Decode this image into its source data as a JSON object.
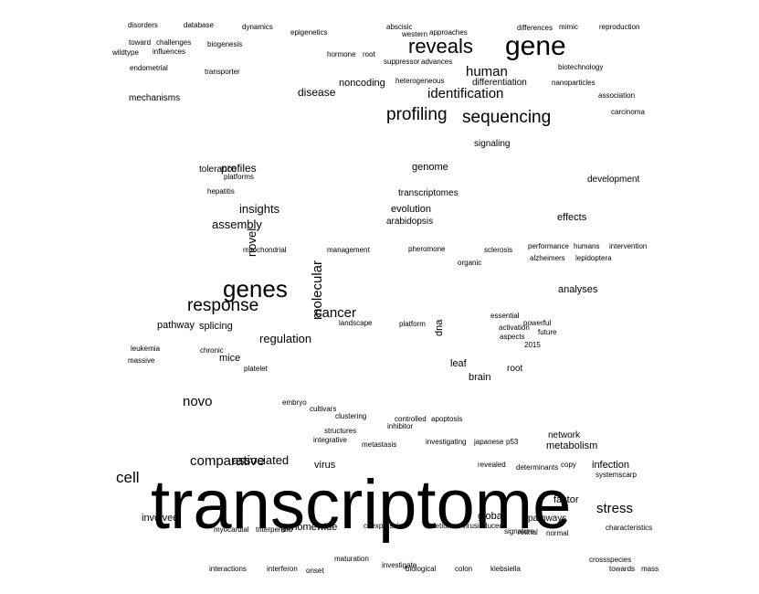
{
  "word_cloud": {
    "color": "#000000",
    "words": [
      {
        "text": "transcriptome",
        "emphasis": "largest"
      },
      {
        "text": "gene",
        "emphasis": "large"
      },
      {
        "text": "genes",
        "emphasis": "large"
      },
      {
        "text": "reveals",
        "emphasis": "large"
      },
      {
        "text": "profiling",
        "emphasis": "large"
      },
      {
        "text": "sequencing",
        "emphasis": "large"
      },
      {
        "text": "response",
        "emphasis": "large"
      },
      {
        "text": "identification",
        "emphasis": "medium"
      },
      {
        "text": "human",
        "emphasis": "medium"
      },
      {
        "text": "cell",
        "emphasis": "medium"
      },
      {
        "text": "comparative",
        "emphasis": "medium"
      },
      {
        "text": "stress",
        "emphasis": "medium"
      },
      {
        "text": "regulation",
        "emphasis": "medium"
      },
      {
        "text": "novo",
        "emphasis": "medium"
      },
      {
        "text": "assembly",
        "emphasis": "medium"
      },
      {
        "text": "cancer",
        "emphasis": "medium"
      },
      {
        "text": "molecular",
        "emphasis": "medium"
      },
      {
        "text": "associated",
        "emphasis": "medium"
      },
      {
        "text": "insights",
        "emphasis": "medium"
      },
      {
        "text": "profiles",
        "emphasis": "medium"
      },
      {
        "text": "novel",
        "emphasis": "medium"
      },
      {
        "text": "disease",
        "emphasis": "medium"
      },
      {
        "text": "signaling",
        "emphasis": "small"
      },
      {
        "text": "mechanisms",
        "emphasis": "small"
      },
      {
        "text": "analyses",
        "emphasis": "small"
      },
      {
        "text": "pathway",
        "emphasis": "small"
      },
      {
        "text": "pathways",
        "emphasis": "small"
      },
      {
        "text": "genome",
        "emphasis": "small"
      },
      {
        "text": "infection",
        "emphasis": "small"
      },
      {
        "text": "involved",
        "emphasis": "small"
      },
      {
        "text": "genomewide",
        "emphasis": "small"
      },
      {
        "text": "virus",
        "emphasis": "small"
      },
      {
        "text": "metabolism",
        "emphasis": "small"
      },
      {
        "text": "factor",
        "emphasis": "small"
      },
      {
        "text": "global",
        "emphasis": "small"
      },
      {
        "text": "evolution",
        "emphasis": "small"
      },
      {
        "text": "noncoding",
        "emphasis": "small"
      },
      {
        "text": "transcriptomes",
        "emphasis": "small"
      },
      {
        "text": "arabidopsis",
        "emphasis": "small"
      },
      {
        "text": "differentiation",
        "emphasis": "small"
      },
      {
        "text": "development",
        "emphasis": "small"
      },
      {
        "text": "effects",
        "emphasis": "small"
      },
      {
        "text": "network",
        "emphasis": "small"
      },
      {
        "text": "tolerance",
        "emphasis": "small"
      },
      {
        "text": "splicing",
        "emphasis": "small"
      },
      {
        "text": "mice",
        "emphasis": "small"
      },
      {
        "text": "dna",
        "emphasis": "small"
      },
      {
        "text": "brain",
        "emphasis": "small"
      },
      {
        "text": "leaf",
        "emphasis": "small"
      },
      {
        "text": "root",
        "emphasis": "small"
      },
      {
        "text": "disorders",
        "emphasis": "tiny"
      },
      {
        "text": "database",
        "emphasis": "tiny"
      },
      {
        "text": "dynamics",
        "emphasis": "tiny"
      },
      {
        "text": "epigenetics",
        "emphasis": "tiny"
      },
      {
        "text": "abscisic",
        "emphasis": "tiny"
      },
      {
        "text": "western",
        "emphasis": "tiny"
      },
      {
        "text": "approaches",
        "emphasis": "tiny"
      },
      {
        "text": "differences",
        "emphasis": "tiny"
      },
      {
        "text": "mimic",
        "emphasis": "tiny"
      },
      {
        "text": "reproduction",
        "emphasis": "tiny"
      },
      {
        "text": "toward",
        "emphasis": "tiny"
      },
      {
        "text": "challenges",
        "emphasis": "tiny"
      },
      {
        "text": "biogenesis",
        "emphasis": "tiny"
      },
      {
        "text": "wildtype",
        "emphasis": "tiny"
      },
      {
        "text": "influences",
        "emphasis": "tiny"
      },
      {
        "text": "endometrial",
        "emphasis": "tiny"
      },
      {
        "text": "transporter",
        "emphasis": "tiny"
      },
      {
        "text": "hormone",
        "emphasis": "tiny"
      },
      {
        "text": "root",
        "emphasis": "tiny"
      },
      {
        "text": "suppressor",
        "emphasis": "tiny"
      },
      {
        "text": "advances",
        "emphasis": "tiny"
      },
      {
        "text": "heterogeneous",
        "emphasis": "tiny"
      },
      {
        "text": "nanoparticles",
        "emphasis": "tiny"
      },
      {
        "text": "biotechnology",
        "emphasis": "tiny"
      },
      {
        "text": "association",
        "emphasis": "tiny"
      },
      {
        "text": "carcinoma",
        "emphasis": "tiny"
      },
      {
        "text": "hepatitis",
        "emphasis": "tiny"
      },
      {
        "text": "platforms",
        "emphasis": "tiny"
      },
      {
        "text": "mitochondrial",
        "emphasis": "tiny"
      },
      {
        "text": "management",
        "emphasis": "tiny"
      },
      {
        "text": "pheromone",
        "emphasis": "tiny"
      },
      {
        "text": "organic",
        "emphasis": "tiny"
      },
      {
        "text": "sclerosis",
        "emphasis": "tiny"
      },
      {
        "text": "performance",
        "emphasis": "tiny"
      },
      {
        "text": "humans",
        "emphasis": "tiny"
      },
      {
        "text": "intervention",
        "emphasis": "tiny"
      },
      {
        "text": "alzheimers",
        "emphasis": "tiny"
      },
      {
        "text": "lepidoptera",
        "emphasis": "tiny"
      },
      {
        "text": "landscape",
        "emphasis": "tiny"
      },
      {
        "text": "platform",
        "emphasis": "tiny"
      },
      {
        "text": "essential",
        "emphasis": "tiny"
      },
      {
        "text": "powerful",
        "emphasis": "tiny"
      },
      {
        "text": "activation",
        "emphasis": "tiny"
      },
      {
        "text": "future",
        "emphasis": "tiny"
      },
      {
        "text": "aspects",
        "emphasis": "tiny"
      },
      {
        "text": "2015",
        "emphasis": "tiny"
      },
      {
        "text": "leukemia",
        "emphasis": "tiny"
      },
      {
        "text": "massive",
        "emphasis": "tiny"
      },
      {
        "text": "chronic",
        "emphasis": "tiny"
      },
      {
        "text": "platelet",
        "emphasis": "tiny"
      },
      {
        "text": "embryo",
        "emphasis": "tiny"
      },
      {
        "text": "cultivars",
        "emphasis": "tiny"
      },
      {
        "text": "clustering",
        "emphasis": "tiny"
      },
      {
        "text": "controlled",
        "emphasis": "tiny"
      },
      {
        "text": "apoptosis",
        "emphasis": "tiny"
      },
      {
        "text": "inhibitor",
        "emphasis": "tiny"
      },
      {
        "text": "structures",
        "emphasis": "tiny"
      },
      {
        "text": "integrative",
        "emphasis": "tiny"
      },
      {
        "text": "metastasis",
        "emphasis": "tiny"
      },
      {
        "text": "investigating",
        "emphasis": "tiny"
      },
      {
        "text": "japanese",
        "emphasis": "tiny"
      },
      {
        "text": "p53",
        "emphasis": "tiny"
      },
      {
        "text": "revealed",
        "emphasis": "tiny"
      },
      {
        "text": "determinants",
        "emphasis": "tiny"
      },
      {
        "text": "copy",
        "emphasis": "tiny"
      },
      {
        "text": "systemscarp",
        "emphasis": "tiny"
      },
      {
        "text": "myocardial",
        "emphasis": "tiny"
      },
      {
        "text": "triterpenoid",
        "emphasis": "tiny"
      },
      {
        "text": "coexpression",
        "emphasis": "tiny"
      },
      {
        "text": "deletion",
        "emphasis": "tiny"
      },
      {
        "text": "virusinduced",
        "emphasis": "tiny"
      },
      {
        "text": "signature",
        "emphasis": "tiny"
      },
      {
        "text": "retinal",
        "emphasis": "tiny"
      },
      {
        "text": "normal",
        "emphasis": "tiny"
      },
      {
        "text": "characteristics",
        "emphasis": "tiny"
      },
      {
        "text": "interactions",
        "emphasis": "tiny"
      },
      {
        "text": "interferon",
        "emphasis": "tiny"
      },
      {
        "text": "onset",
        "emphasis": "tiny"
      },
      {
        "text": "maturation",
        "emphasis": "tiny"
      },
      {
        "text": "investigate",
        "emphasis": "tiny"
      },
      {
        "text": "biological",
        "emphasis": "tiny"
      },
      {
        "text": "colon",
        "emphasis": "tiny"
      },
      {
        "text": "klebsiella",
        "emphasis": "tiny"
      },
      {
        "text": "crossspecies",
        "emphasis": "tiny"
      },
      {
        "text": "towards",
        "emphasis": "tiny"
      },
      {
        "text": "mass",
        "emphasis": "tiny"
      }
    ]
  }
}
